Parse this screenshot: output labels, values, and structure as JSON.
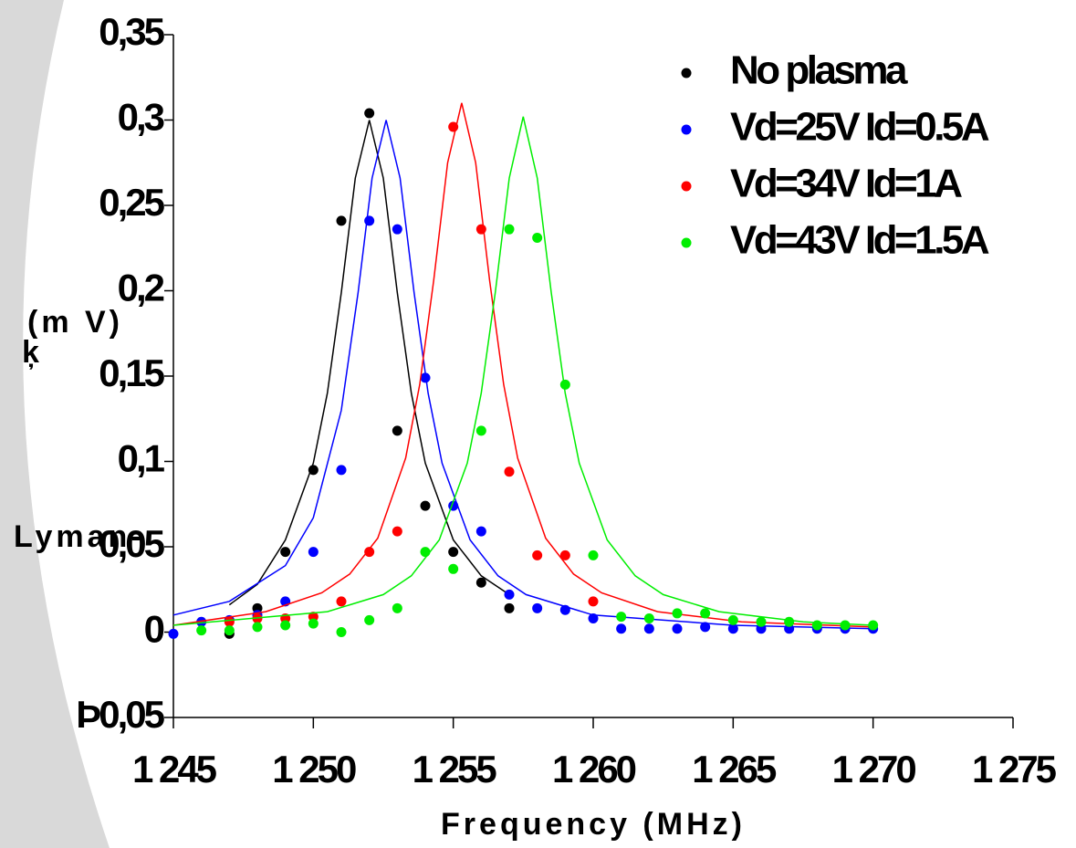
{
  "chart_data": {
    "type": "scatter",
    "xlabel": "Frequency (MHz)",
    "ylabel_parts": [
      "Lyman-",
      "ķ",
      "(m V)"
    ],
    "xlim": [
      1245,
      1275
    ],
    "ylim": [
      -0.05,
      0.35
    ],
    "xticks": [
      {
        "value": 1245,
        "label": "1 245"
      },
      {
        "value": 1250,
        "label": "1 250"
      },
      {
        "value": 1255,
        "label": "1 255"
      },
      {
        "value": 1260,
        "label": "1 260"
      },
      {
        "value": 1265,
        "label": "1 265"
      },
      {
        "value": 1270,
        "label": "1 270"
      },
      {
        "value": 1275,
        "label": "1 275"
      }
    ],
    "yticks": [
      {
        "value": -0.05,
        "label": "Þ0,05"
      },
      0,
      {
        "value": 0.05,
        "label": "0,05"
      },
      {
        "value": 0.1,
        "label": "0,1"
      },
      {
        "value": 0.15,
        "label": "0,15"
      },
      {
        "value": 0.2,
        "label": "0,2"
      },
      {
        "value": 0.25,
        "label": "0,25"
      },
      {
        "value": 0.3,
        "label": "0,3"
      },
      {
        "value": 0.35,
        "label": "0,35"
      }
    ],
    "legend": "upper right",
    "series": [
      {
        "name": "No plasma",
        "color": "#000000",
        "x": [
          1247,
          1248,
          1249,
          1250,
          1251,
          1252,
          1253,
          1254,
          1255,
          1256,
          1257
        ],
        "values": [
          -0.001,
          0.014,
          0.047,
          0.095,
          0.241,
          0.304,
          0.118,
          0.074,
          0.047,
          0.029,
          0.014
        ],
        "fit_x": [
          1247,
          1248,
          1249,
          1250,
          1250.5,
          1251,
          1251.5,
          1252,
          1252.5,
          1253,
          1253.5,
          1254,
          1255,
          1256,
          1257
        ],
        "fit_values": [
          0.016,
          0.028,
          0.054,
          0.099,
          0.14,
          0.199,
          0.266,
          0.3,
          0.266,
          0.199,
          0.14,
          0.099,
          0.054,
          0.033,
          0.022
        ]
      },
      {
        "name": "Vd=25V Id=0.5A",
        "color": "#0000ff",
        "x": [
          1245,
          1246,
          1247,
          1248,
          1249,
          1250,
          1251,
          1252,
          1253,
          1254,
          1255,
          1256,
          1257,
          1258,
          1259,
          1260,
          1261,
          1262,
          1263,
          1264,
          1265,
          1266,
          1267,
          1268,
          1269,
          1270
        ],
        "values": [
          -0.001,
          0.006,
          0.007,
          0.01,
          0.018,
          0.047,
          0.095,
          0.241,
          0.236,
          0.149,
          0.074,
          0.059,
          0.022,
          0.014,
          0.013,
          0.008,
          0.002,
          0.002,
          0.002,
          0.003,
          0.002,
          0.002,
          0.002,
          0.002,
          0.002,
          0.002
        ],
        "fit_x": [
          1245,
          1247,
          1249,
          1250,
          1251,
          1251.6,
          1252.1,
          1252.6,
          1253.1,
          1253.6,
          1254.1,
          1254.6,
          1255.6,
          1256.6,
          1257.6,
          1260,
          1265,
          1270
        ],
        "fit_values": [
          0.01,
          0.018,
          0.039,
          0.067,
          0.13,
          0.199,
          0.266,
          0.3,
          0.266,
          0.199,
          0.14,
          0.099,
          0.054,
          0.033,
          0.022,
          0.01,
          0.004,
          0.002
        ]
      },
      {
        "name": "Vd=34V Id=1A",
        "color": "#ff0000",
        "x": [
          1247,
          1248,
          1249,
          1250,
          1251,
          1252,
          1253,
          1255,
          1256,
          1257,
          1258,
          1259,
          1260
        ],
        "values": [
          0.006,
          0.008,
          0.008,
          0.009,
          0.018,
          0.047,
          0.059,
          0.296,
          0.236,
          0.094,
          0.045,
          0.045,
          0.018
        ],
        "fit_x": [
          1245,
          1248.3,
          1250.3,
          1251.3,
          1252.3,
          1253.3,
          1253.8,
          1254.3,
          1254.8,
          1255.3,
          1255.8,
          1256.3,
          1256.8,
          1257.3,
          1258.3,
          1259.3,
          1260.3,
          1262.3,
          1265.3,
          1270
        ],
        "fit_values": [
          0.004,
          0.012,
          0.023,
          0.034,
          0.055,
          0.102,
          0.145,
          0.206,
          0.275,
          0.31,
          0.275,
          0.206,
          0.145,
          0.102,
          0.055,
          0.034,
          0.023,
          0.012,
          0.006,
          0.003
        ]
      },
      {
        "name": "Vd=43V Id=1.5A",
        "color": "#00ee00",
        "x": [
          1246,
          1247,
          1248,
          1249,
          1250,
          1251,
          1252,
          1253,
          1254,
          1255,
          1256,
          1257,
          1258,
          1259,
          1260,
          1261,
          1262,
          1263,
          1264,
          1265,
          1266,
          1267,
          1268,
          1269,
          1270
        ],
        "values": [
          0.001,
          0.001,
          0.003,
          0.004,
          0.005,
          0.0,
          0.007,
          0.014,
          0.047,
          0.037,
          0.118,
          0.236,
          0.231,
          0.145,
          0.045,
          0.009,
          0.008,
          0.011,
          0.011,
          0.007,
          0.006,
          0.006,
          0.004,
          0.004,
          0.004
        ],
        "fit_x": [
          1245,
          1250.5,
          1252.5,
          1253.5,
          1254.5,
          1255.5,
          1256,
          1256.5,
          1257,
          1257.5,
          1258,
          1258.5,
          1259,
          1259.5,
          1260.5,
          1261.5,
          1262.5,
          1264.5,
          1267.5,
          1270
        ],
        "fit_values": [
          0.004,
          0.012,
          0.022,
          0.033,
          0.054,
          0.099,
          0.14,
          0.199,
          0.266,
          0.302,
          0.266,
          0.199,
          0.14,
          0.099,
          0.054,
          0.033,
          0.022,
          0.012,
          0.006,
          0.004
        ]
      }
    ]
  }
}
